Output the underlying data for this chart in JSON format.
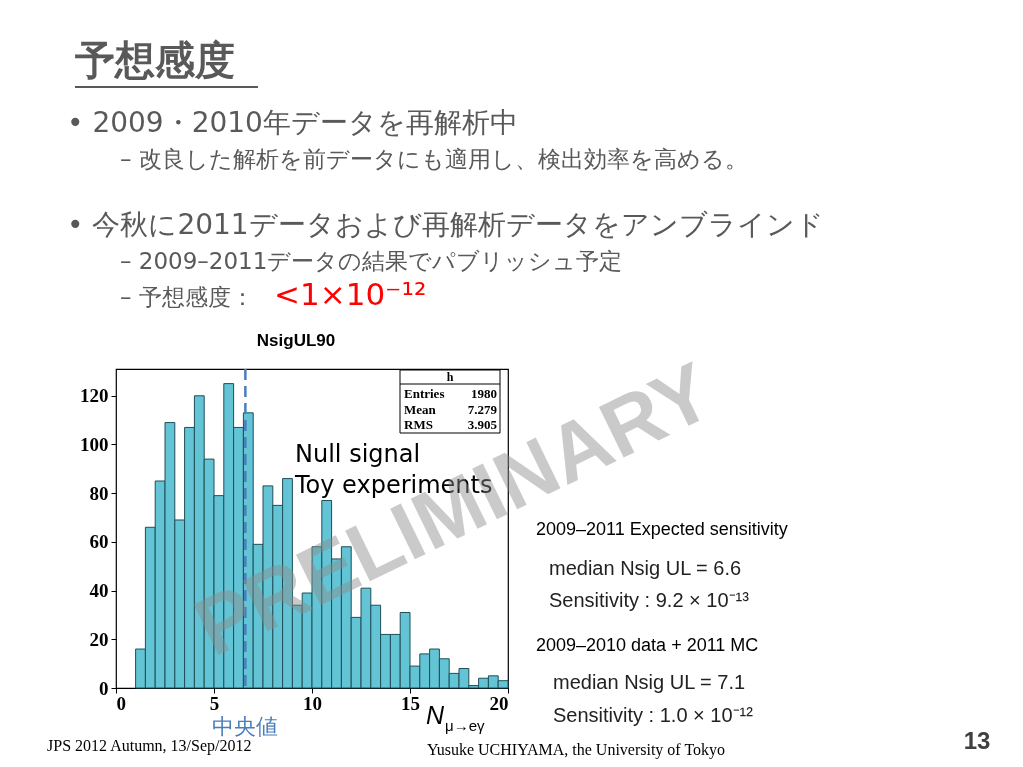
{
  "chart_data": {
    "type": "histogram",
    "title": "予想感度",
    "xlabel": "N$_{μ→eγ}$",
    "bins": [
      1.0,
      1.5,
      2.0,
      2.5,
      3.0,
      3.5,
      4.0,
      4.5,
      5.0,
      5.5,
      6.0,
      6.5,
      7.0,
      7.5,
      8.0,
      8.5,
      9.0,
      9.5,
      10.0,
      10.5,
      11.0,
      11.5,
      12.0,
      12.5,
      13.0,
      13.5,
      14.0,
      14.5,
      15.0,
      15.5,
      16.0,
      16.5,
      17.0,
      17.5,
      18.0,
      18.5,
      19.0,
      19.5,
      20.0
    ],
    "values": [
      16,
      66,
      85,
      109,
      69,
      107,
      120,
      94,
      79,
      125,
      107,
      113,
      59,
      83,
      75,
      86,
      34,
      39,
      58,
      77,
      53,
      58,
      29,
      41,
      34,
      22,
      22,
      31,
      9,
      14,
      16,
      12,
      6,
      8,
      1,
      4,
      5,
      3
    ],
    "color": "#62c4d5",
    "xlim": [
      0,
      20
    ],
    "xticks": [
      0,
      5,
      10,
      15,
      20
    ],
    "ylim": [
      0,
      131
    ],
    "yticks": [
      0,
      20,
      40,
      60,
      80,
      100,
      120
    ],
    "ref_lines": [
      {
        "axis": "x",
        "value": 6.6,
        "label": "中央値",
        "color": "#4a7ebb",
        "line_style": "dashed"
      }
    ],
    "annotations": [
      "• 2009・2010年データを再解析中",
      "– 改良した解析を前データにも適用し、検出効率を高める。",
      "• 今秋に2011データおよび再解析データをアンブラインド",
      "– 2009–2011データの結果でパブリッシュ予定",
      "– 予想感度：",
      "<1×10⁻¹²",
      "NsigUL90",
      "h",
      "Entries",
      "1980",
      "Mean",
      "7.279",
      "RMS",
      "3.905",
      "Null signal",
      "Toy experiments",
      "2009–2011 Expected sensitivity",
      "median Nsig UL = 6.6",
      "Sensitivity : 9.2 × 10⁻¹³",
      "2009–2010 data + 2011 MC",
      "median Nsig UL = 7.1",
      "Sensitivity : 1.0 × 10⁻¹²",
      "PRELIMINARY",
      "JPS 2012 Autumn, 13/Sep/2012",
      "Yusuke UCHIYAMA, the University of Tokyo",
      "13"
    ]
  }
}
